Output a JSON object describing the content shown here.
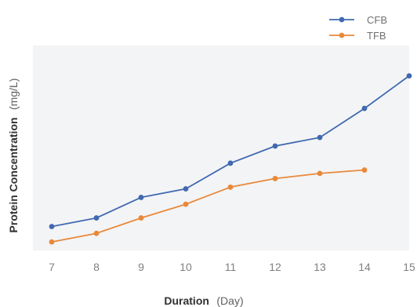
{
  "chart_data": {
    "type": "line",
    "x": [
      7,
      8,
      9,
      10,
      11,
      12,
      13,
      14,
      15
    ],
    "x_tick_labels": [
      "7",
      "8",
      "9",
      "10",
      "11",
      "12",
      "13",
      "14",
      "15"
    ],
    "xlim": [
      7,
      15
    ],
    "xlabel": "Duration",
    "xlabel_unit": "(Day)",
    "ylabel": "Protein Concentration",
    "ylabel_unit": "(mg/L)",
    "ylim": [
      0,
      100
    ],
    "y_ticks_shown": false,
    "grid": false,
    "plot_background": "#f3f4f6",
    "legend_position": "top-right",
    "series": [
      {
        "name": "CFB",
        "color": "#4169b0",
        "x": [
          7,
          8,
          9,
          10,
          11,
          12,
          13,
          14,
          15
        ],
        "values": [
          14,
          19,
          31,
          36,
          51,
          61,
          66,
          83,
          102
        ]
      },
      {
        "name": "TFB",
        "color": "#e8893a",
        "x": [
          7,
          8,
          9,
          10,
          11,
          12,
          13,
          14
        ],
        "values": [
          5,
          10,
          19,
          27,
          37,
          42,
          45,
          47
        ]
      }
    ]
  }
}
